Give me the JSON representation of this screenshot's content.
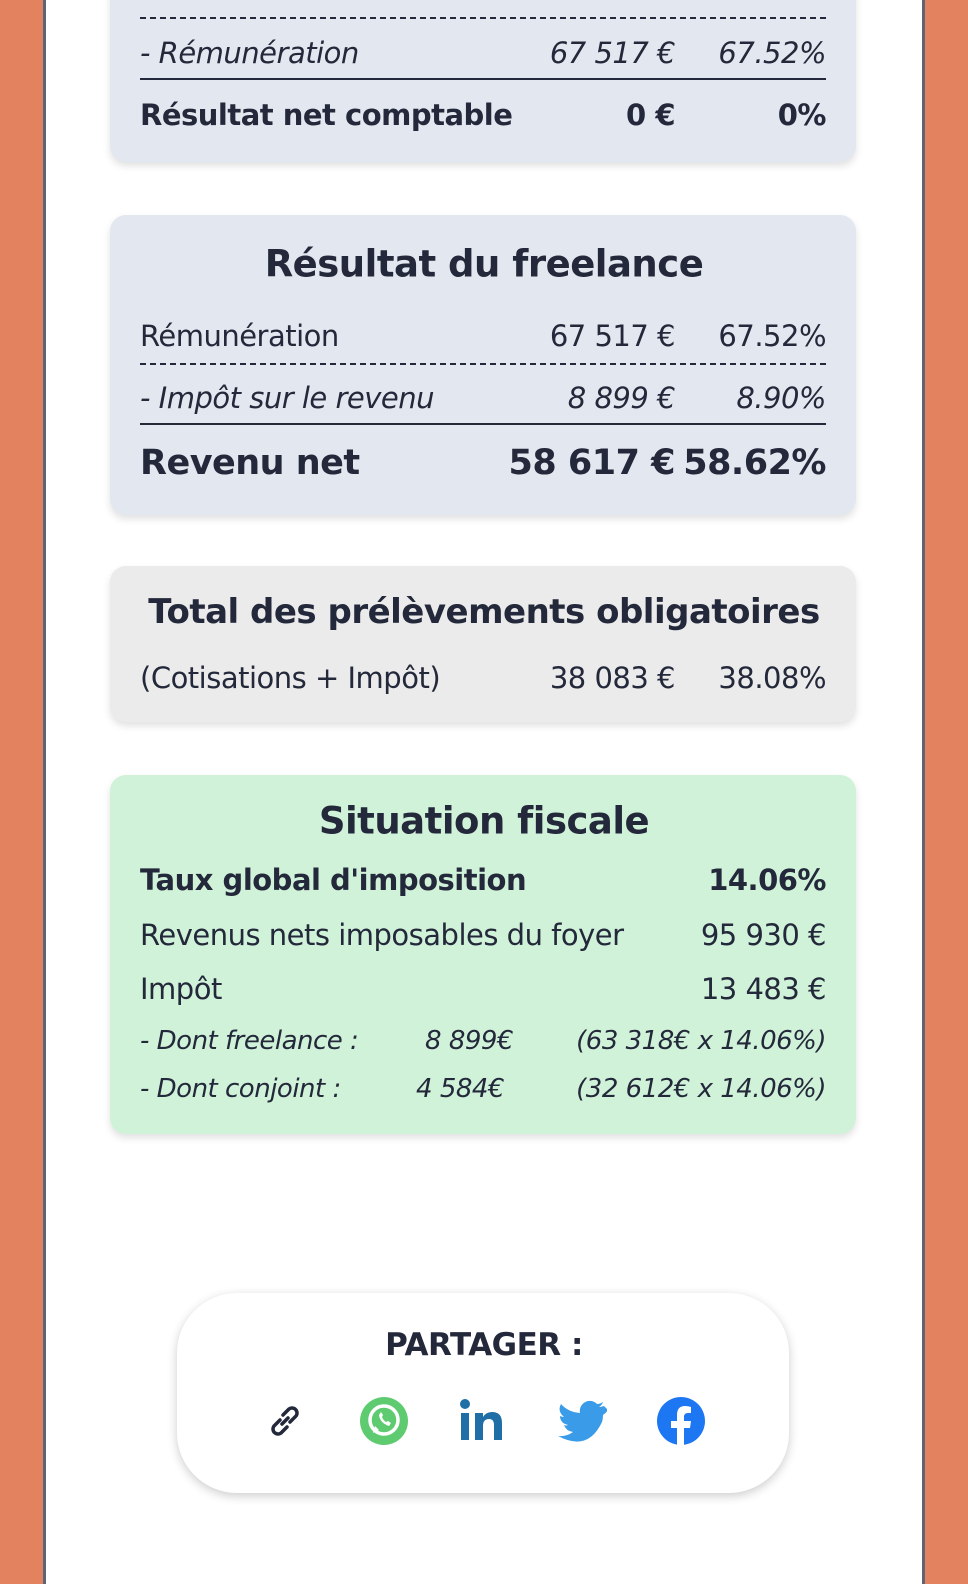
{
  "result_card": {
    "rows": [
      {
        "label": "- Rémunération",
        "amount": "67 517 €",
        "percent": "67.52%"
      },
      {
        "label": "Résultat net comptable",
        "amount": "0 €",
        "percent": "0%"
      }
    ]
  },
  "freelance_card": {
    "title": "Résultat du freelance",
    "rows": [
      {
        "label": "Rémunération",
        "amount": "67 517 €",
        "percent": "67.52%"
      },
      {
        "label": "- Impôt sur le revenu",
        "amount": "8 899 €",
        "percent": "8.90%"
      },
      {
        "label": "Revenu net",
        "amount": "58 617 €",
        "percent": "58.62%"
      }
    ]
  },
  "total_card": {
    "title": "Total des prélèvements obligatoires",
    "rows": [
      {
        "label": "(Cotisations + Impôt)",
        "amount": "38 083 €",
        "percent": "38.08%"
      }
    ]
  },
  "fiscal_card": {
    "title": "Situation fiscale",
    "rows": [
      {
        "label": "Taux global d'imposition",
        "value": "14.06%"
      },
      {
        "label": "Revenus nets imposables du foyer",
        "value": "95 930 €"
      },
      {
        "label": "Impôt",
        "value": "13 483 €"
      }
    ],
    "details": [
      {
        "label": "- Dont freelance :",
        "amount": "8 899€",
        "calc": "(63 318€ x 14.06%)"
      },
      {
        "label": "- Dont conjoint :",
        "amount": "4 584€",
        "calc": "(32 612€ x 14.06%)"
      }
    ]
  },
  "share": {
    "title": "PARTAGER :"
  }
}
